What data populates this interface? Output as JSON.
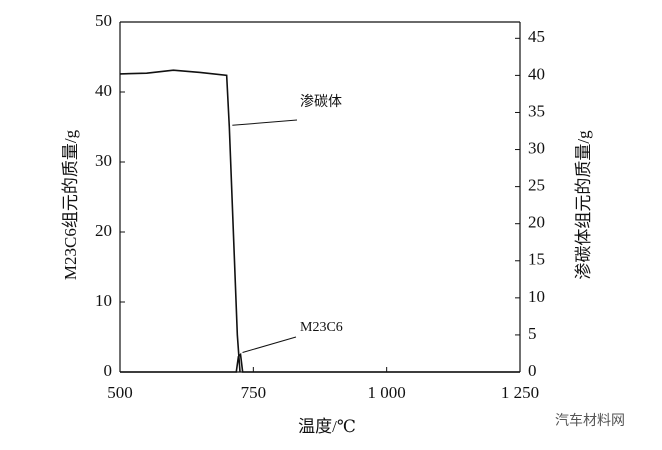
{
  "chart_data": {
    "type": "line",
    "xlabel": "温度/℃",
    "ylabel": "M23C6组元的质量/g",
    "y2label": "渗碳体组元的质量/g",
    "xlim": [
      500,
      1250
    ],
    "xticks": [
      500,
      750,
      {
        "value": 1000,
        "label": "1 000"
      },
      {
        "value": 1250,
        "label": "1 250"
      }
    ],
    "ylim": [
      0,
      50
    ],
    "yticks": [
      0,
      10,
      20,
      30,
      40,
      50
    ],
    "y2lim": [
      0,
      47.2
    ],
    "y2ticks": [
      0,
      5,
      10,
      15,
      20,
      25,
      30,
      35,
      40,
      45
    ],
    "series": [
      {
        "name": "渗碳体",
        "color": "#111111",
        "axis": "y2",
        "x": [
          500,
          550,
          600,
          650,
          700,
          705,
          720,
          725
        ],
        "values": [
          40.2,
          40.3,
          40.7,
          40.4,
          40.0,
          33,
          5,
          0
        ]
      },
      {
        "name": "M23C6",
        "color": "#111111",
        "x": [
          500,
          718,
          722,
          726,
          730,
          740,
          1250
        ],
        "values": [
          0,
          0,
          2.2,
          2.5,
          0,
          0,
          0
        ]
      }
    ],
    "watermark": "汽车材料网"
  }
}
